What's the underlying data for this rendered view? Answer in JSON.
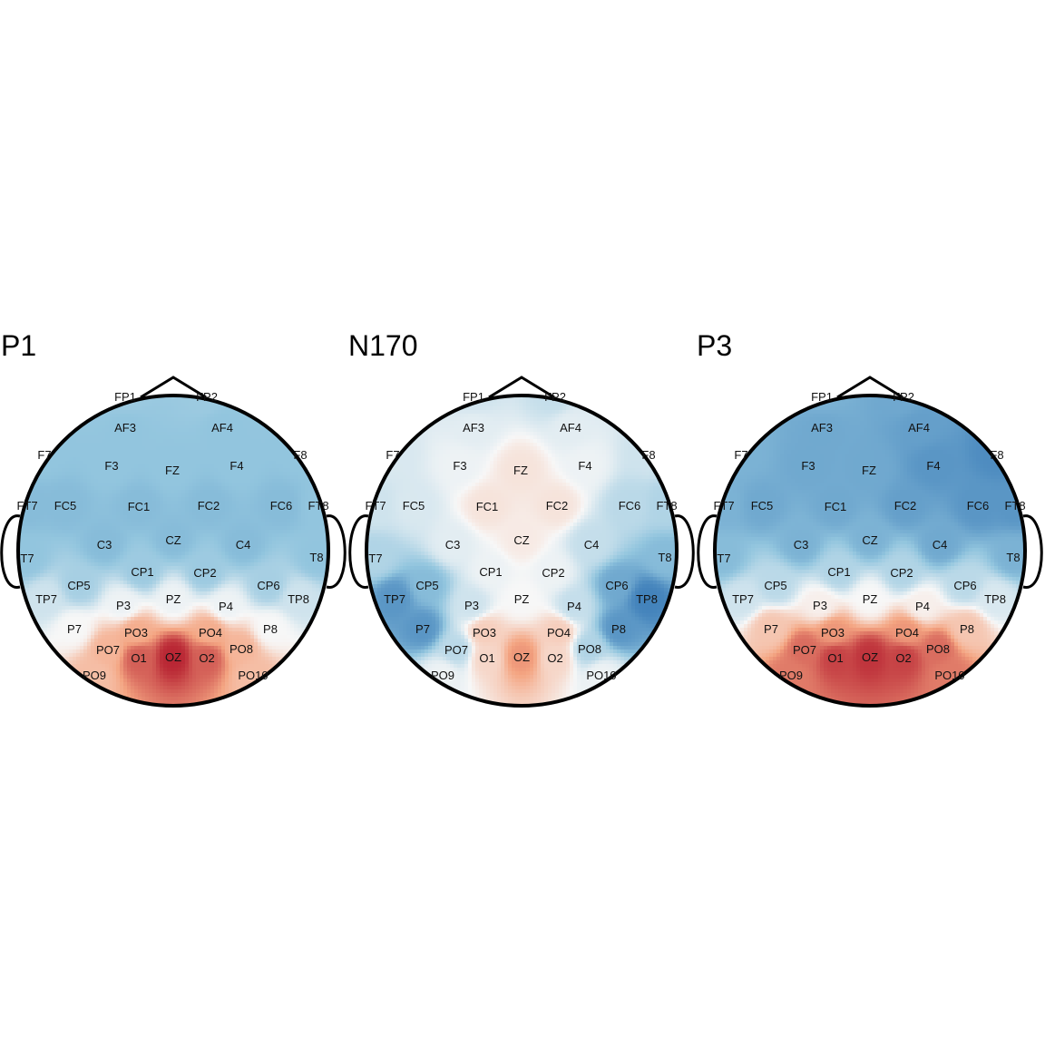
{
  "chart_data": {
    "type": "heatmap",
    "subtype": "scalp-topography",
    "color_scale": {
      "negative": "#2166ac",
      "zero": "#f7f7f7",
      "positive": "#b2182b"
    },
    "value_range": [
      -1,
      1
    ],
    "electrodes": [
      "FP1",
      "FP2",
      "AF3",
      "AF4",
      "F7",
      "F3",
      "FZ",
      "F4",
      "F8",
      "FT7",
      "FC5",
      "FC1",
      "FC2",
      "FC6",
      "FT8",
      "T7",
      "C3",
      "CZ",
      "C4",
      "T8",
      "TP7",
      "CP5",
      "CP1",
      "CP2",
      "CP6",
      "TP8",
      "P7",
      "P3",
      "PZ",
      "P4",
      "P8",
      "PO7",
      "PO3",
      "PO4",
      "PO8",
      "PO9",
      "O1",
      "OZ",
      "O2",
      "PO10"
    ],
    "panels": [
      {
        "title": "P1",
        "values": {
          "FP1": -0.45,
          "FP2": -0.45,
          "AF3": -0.5,
          "AF4": -0.5,
          "F7": -0.5,
          "F3": -0.5,
          "FZ": -0.5,
          "F4": -0.5,
          "F8": -0.5,
          "FT7": -0.55,
          "FC5": -0.55,
          "FC1": -0.55,
          "FC2": -0.55,
          "FC6": -0.55,
          "FT8": -0.5,
          "T7": -0.5,
          "C3": -0.55,
          "CZ": -0.55,
          "C4": -0.55,
          "T8": -0.5,
          "TP7": -0.2,
          "CP5": -0.4,
          "CP1": -0.45,
          "CP2": -0.45,
          "CP6": -0.4,
          "TP8": -0.2,
          "P7": 0.0,
          "P3": -0.05,
          "PZ": -0.05,
          "P4": -0.05,
          "P8": 0.0,
          "PO7": 0.4,
          "PO3": 0.45,
          "PO4": 0.45,
          "PO8": 0.4,
          "PO9": 0.35,
          "O1": 0.75,
          "OZ": 0.95,
          "O2": 0.75,
          "PO10": 0.35
        }
      },
      {
        "title": "N170",
        "values": {
          "FP1": -0.2,
          "FP2": -0.25,
          "AF3": -0.1,
          "AF4": -0.1,
          "F7": -0.15,
          "F3": -0.05,
          "FZ": 0.12,
          "F4": -0.05,
          "F8": -0.2,
          "FT7": -0.2,
          "FC5": -0.15,
          "FC1": 0.12,
          "FC2": 0.12,
          "FC6": -0.3,
          "FT8": -0.35,
          "T7": -0.35,
          "C3": -0.1,
          "CZ": 0.08,
          "C4": -0.25,
          "T8": -0.55,
          "TP7": -0.75,
          "CP5": -0.55,
          "CP1": -0.05,
          "CP2": -0.05,
          "CP6": -0.65,
          "TP8": -0.85,
          "P7": -0.75,
          "P3": -0.2,
          "PZ": 0.0,
          "P4": -0.25,
          "P8": -0.75,
          "PO7": -0.3,
          "PO3": 0.25,
          "PO4": 0.25,
          "PO8": -0.35,
          "PO9": -0.05,
          "O1": 0.2,
          "OZ": 0.55,
          "O2": 0.2,
          "PO10": -0.05
        }
      },
      {
        "title": "P3",
        "values": {
          "FP1": -0.6,
          "FP2": -0.65,
          "AF3": -0.65,
          "AF4": -0.7,
          "F7": -0.6,
          "F3": -0.65,
          "FZ": -0.65,
          "F4": -0.75,
          "F8": -0.8,
          "FT7": -0.6,
          "FC5": -0.65,
          "FC1": -0.65,
          "FC2": -0.7,
          "FC6": -0.75,
          "FT8": -0.75,
          "T7": -0.55,
          "C3": -0.6,
          "CZ": -0.6,
          "C4": -0.65,
          "T8": -0.6,
          "TP7": -0.2,
          "CP5": -0.3,
          "CP1": -0.35,
          "CP2": -0.35,
          "CP6": -0.3,
          "TP8": -0.15,
          "P7": 0.3,
          "P3": 0.05,
          "PZ": 0.0,
          "P4": 0.05,
          "P8": 0.3,
          "PO7": 0.7,
          "PO3": 0.55,
          "PO4": 0.55,
          "PO8": 0.7,
          "PO9": 0.65,
          "O1": 0.85,
          "OZ": 0.9,
          "O2": 0.85,
          "PO10": 0.65
        }
      }
    ]
  }
}
